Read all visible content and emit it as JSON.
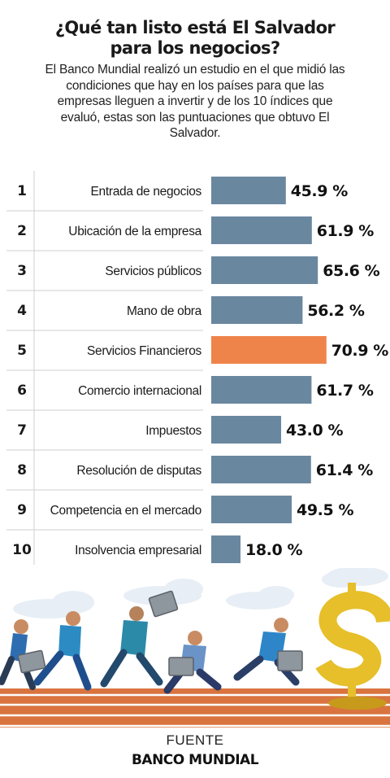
{
  "header": {
    "title": "¿Qué tan listo está El Salvador para los negocios?",
    "subtitle": "El Banco Mundial realizó un estudio en el que midió las condiciones que hay en los países para que las empresas lleguen a invertir y de los 10 índices que evaluó, estas son las puntuaciones que obtuvo El Salvador."
  },
  "colors": {
    "bar": "#6a87a0",
    "highlight": "#ef844b",
    "divider": "#cfcfcf",
    "track": "#d9743f",
    "coin": "#e6bf2a"
  },
  "chart_data": {
    "type": "bar",
    "orientation": "horizontal",
    "ranks": [
      "1",
      "2",
      "3",
      "4",
      "5",
      "6",
      "7",
      "8",
      "9",
      "10"
    ],
    "categories": [
      "Entrada de negocios",
      "Ubicación de la empresa",
      "Servicios públicos",
      "Mano de obra",
      "Servicios Financieros",
      "Comercio internacional",
      "Impuestos",
      "Resolución de disputas",
      "Competencia en el mercado",
      "Insolvencia empresarial"
    ],
    "values": [
      45.9,
      61.9,
      65.6,
      56.2,
      70.9,
      61.7,
      43.0,
      61.4,
      49.5,
      18.0
    ],
    "value_labels": [
      "45.9 %",
      "61.9 %",
      "65.6 %",
      "56.2 %",
      "70.9 %",
      "61.7 %",
      "43.0 %",
      "61.4 %",
      "49.5 %",
      "18.0 %"
    ],
    "highlight_index": 4,
    "unit": "%",
    "xlim": [
      0,
      100
    ],
    "grid": false
  },
  "illustration": {
    "icons": [
      "businessman-runner-icon",
      "briefcase-icon",
      "dollar-sign-icon",
      "cloud-icon",
      "running-track-icon"
    ]
  },
  "source": {
    "label": "FUENTE",
    "name": "BANCO MUNDIAL"
  }
}
